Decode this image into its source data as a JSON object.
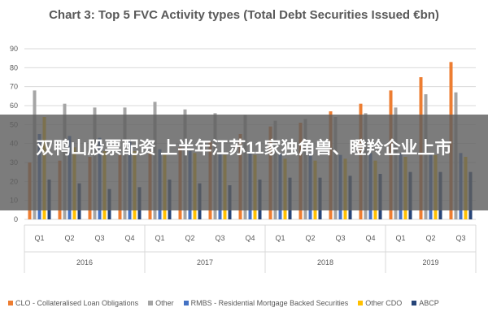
{
  "chart_data": {
    "type": "bar",
    "title": "Chart 3: Top 5 FVC Activity types (Total Debt Securities Issued €bn)",
    "xlabel": "",
    "ylabel": "",
    "ylim": [
      0,
      90
    ],
    "yticks": [
      0,
      10,
      20,
      30,
      40,
      50,
      60,
      70,
      80,
      90
    ],
    "grid": true,
    "legend_position": "bottom",
    "categories": [
      "Q1",
      "Q2",
      "Q3",
      "Q4",
      "Q1",
      "Q2",
      "Q3",
      "Q4",
      "Q1",
      "Q2",
      "Q3",
      "Q4",
      "Q1",
      "Q2",
      "Q3"
    ],
    "year_groups": [
      {
        "label": "2016",
        "count": 4
      },
      {
        "label": "2017",
        "count": 4
      },
      {
        "label": "2018",
        "count": 4
      },
      {
        "label": "2019",
        "count": 3
      }
    ],
    "series": [
      {
        "name": "CLO - Collateralised Loan Obligations",
        "color": "#ED7D31",
        "values": [
          30,
          31,
          33,
          34,
          36,
          38,
          41,
          45,
          49,
          51,
          57,
          61,
          68,
          75,
          83
        ]
      },
      {
        "name": "Other",
        "color": "#A5A5A5",
        "values": [
          68,
          61,
          59,
          59,
          62,
          58,
          56,
          55,
          52,
          53,
          54,
          56,
          59,
          66,
          67
        ]
      },
      {
        "name": "RMBS - Residential Mortgage Backed Securities",
        "color": "#4472C4",
        "values": [
          45,
          44,
          43,
          41,
          37,
          36,
          35,
          36,
          35,
          35,
          34,
          35,
          35,
          35,
          35
        ]
      },
      {
        "name": "Other CDO",
        "color": "#FFC000",
        "values": [
          54,
          38,
          36,
          36,
          35,
          35,
          34,
          34,
          32,
          31,
          32,
          31,
          33,
          34,
          33
        ]
      },
      {
        "name": "ABCP",
        "color": "#264478",
        "values": [
          21,
          19,
          16,
          17,
          21,
          19,
          18,
          21,
          22,
          22,
          23,
          24,
          25,
          25,
          25
        ]
      }
    ]
  },
  "overlay": {
    "text": "双鸭山股票配资 上半年江苏11家独角兽、瞪羚企业上市"
  }
}
